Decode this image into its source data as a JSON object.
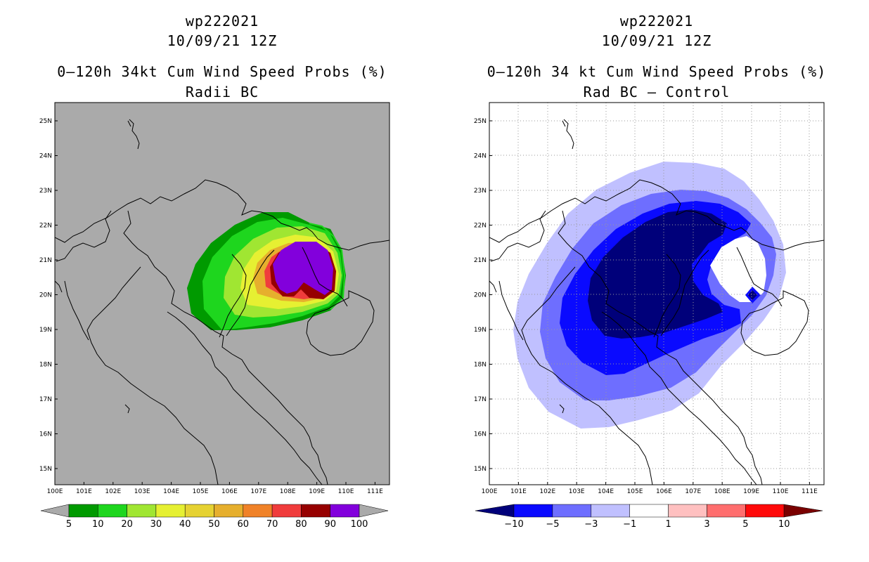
{
  "left_panel": {
    "storm_id": "wp222021",
    "datetime": "10/09/21 12Z",
    "title": "0–120h 34kt Cum Wind Speed Probs (%)",
    "subtitle": "Radii BC",
    "colorbar": {
      "labels": [
        "5",
        "10",
        "20",
        "30",
        "40",
        "50",
        "60",
        "70",
        "80",
        "90",
        "100"
      ],
      "colors": [
        "#009a00",
        "#1ed61e",
        "#a0e632",
        "#e6f032",
        "#e6d232",
        "#e6af2d",
        "#f08228",
        "#f03c3c",
        "#960000",
        "#8200dc"
      ]
    }
  },
  "right_panel": {
    "storm_id": "wp222021",
    "datetime": "10/09/21 12Z",
    "title": "0–120h 34 kt Cum Wind Speed Probs (%)",
    "subtitle": "Rad BC – Control",
    "colorbar": {
      "labels": [
        "−10",
        "−5",
        "−3",
        "−1",
        "1",
        "3",
        "5",
        "10"
      ],
      "colors": [
        "#00007a",
        "#0a0aff",
        "#6e6eff",
        "#c0c0ff",
        "#ffffff",
        "#ffc0c0",
        "#ff6e6e",
        "#ff0a0a",
        "#7a0000"
      ]
    }
  },
  "axes": {
    "lat_labels": [
      "25N",
      "24N",
      "23N",
      "22N",
      "21N",
      "20N",
      "19N",
      "18N",
      "17N",
      "16N",
      "15N"
    ],
    "lon_labels": [
      "100E",
      "101E",
      "102E",
      "103E",
      "104E",
      "105E",
      "106E",
      "107E",
      "108E",
      "109E",
      "110E",
      "111E"
    ]
  }
}
